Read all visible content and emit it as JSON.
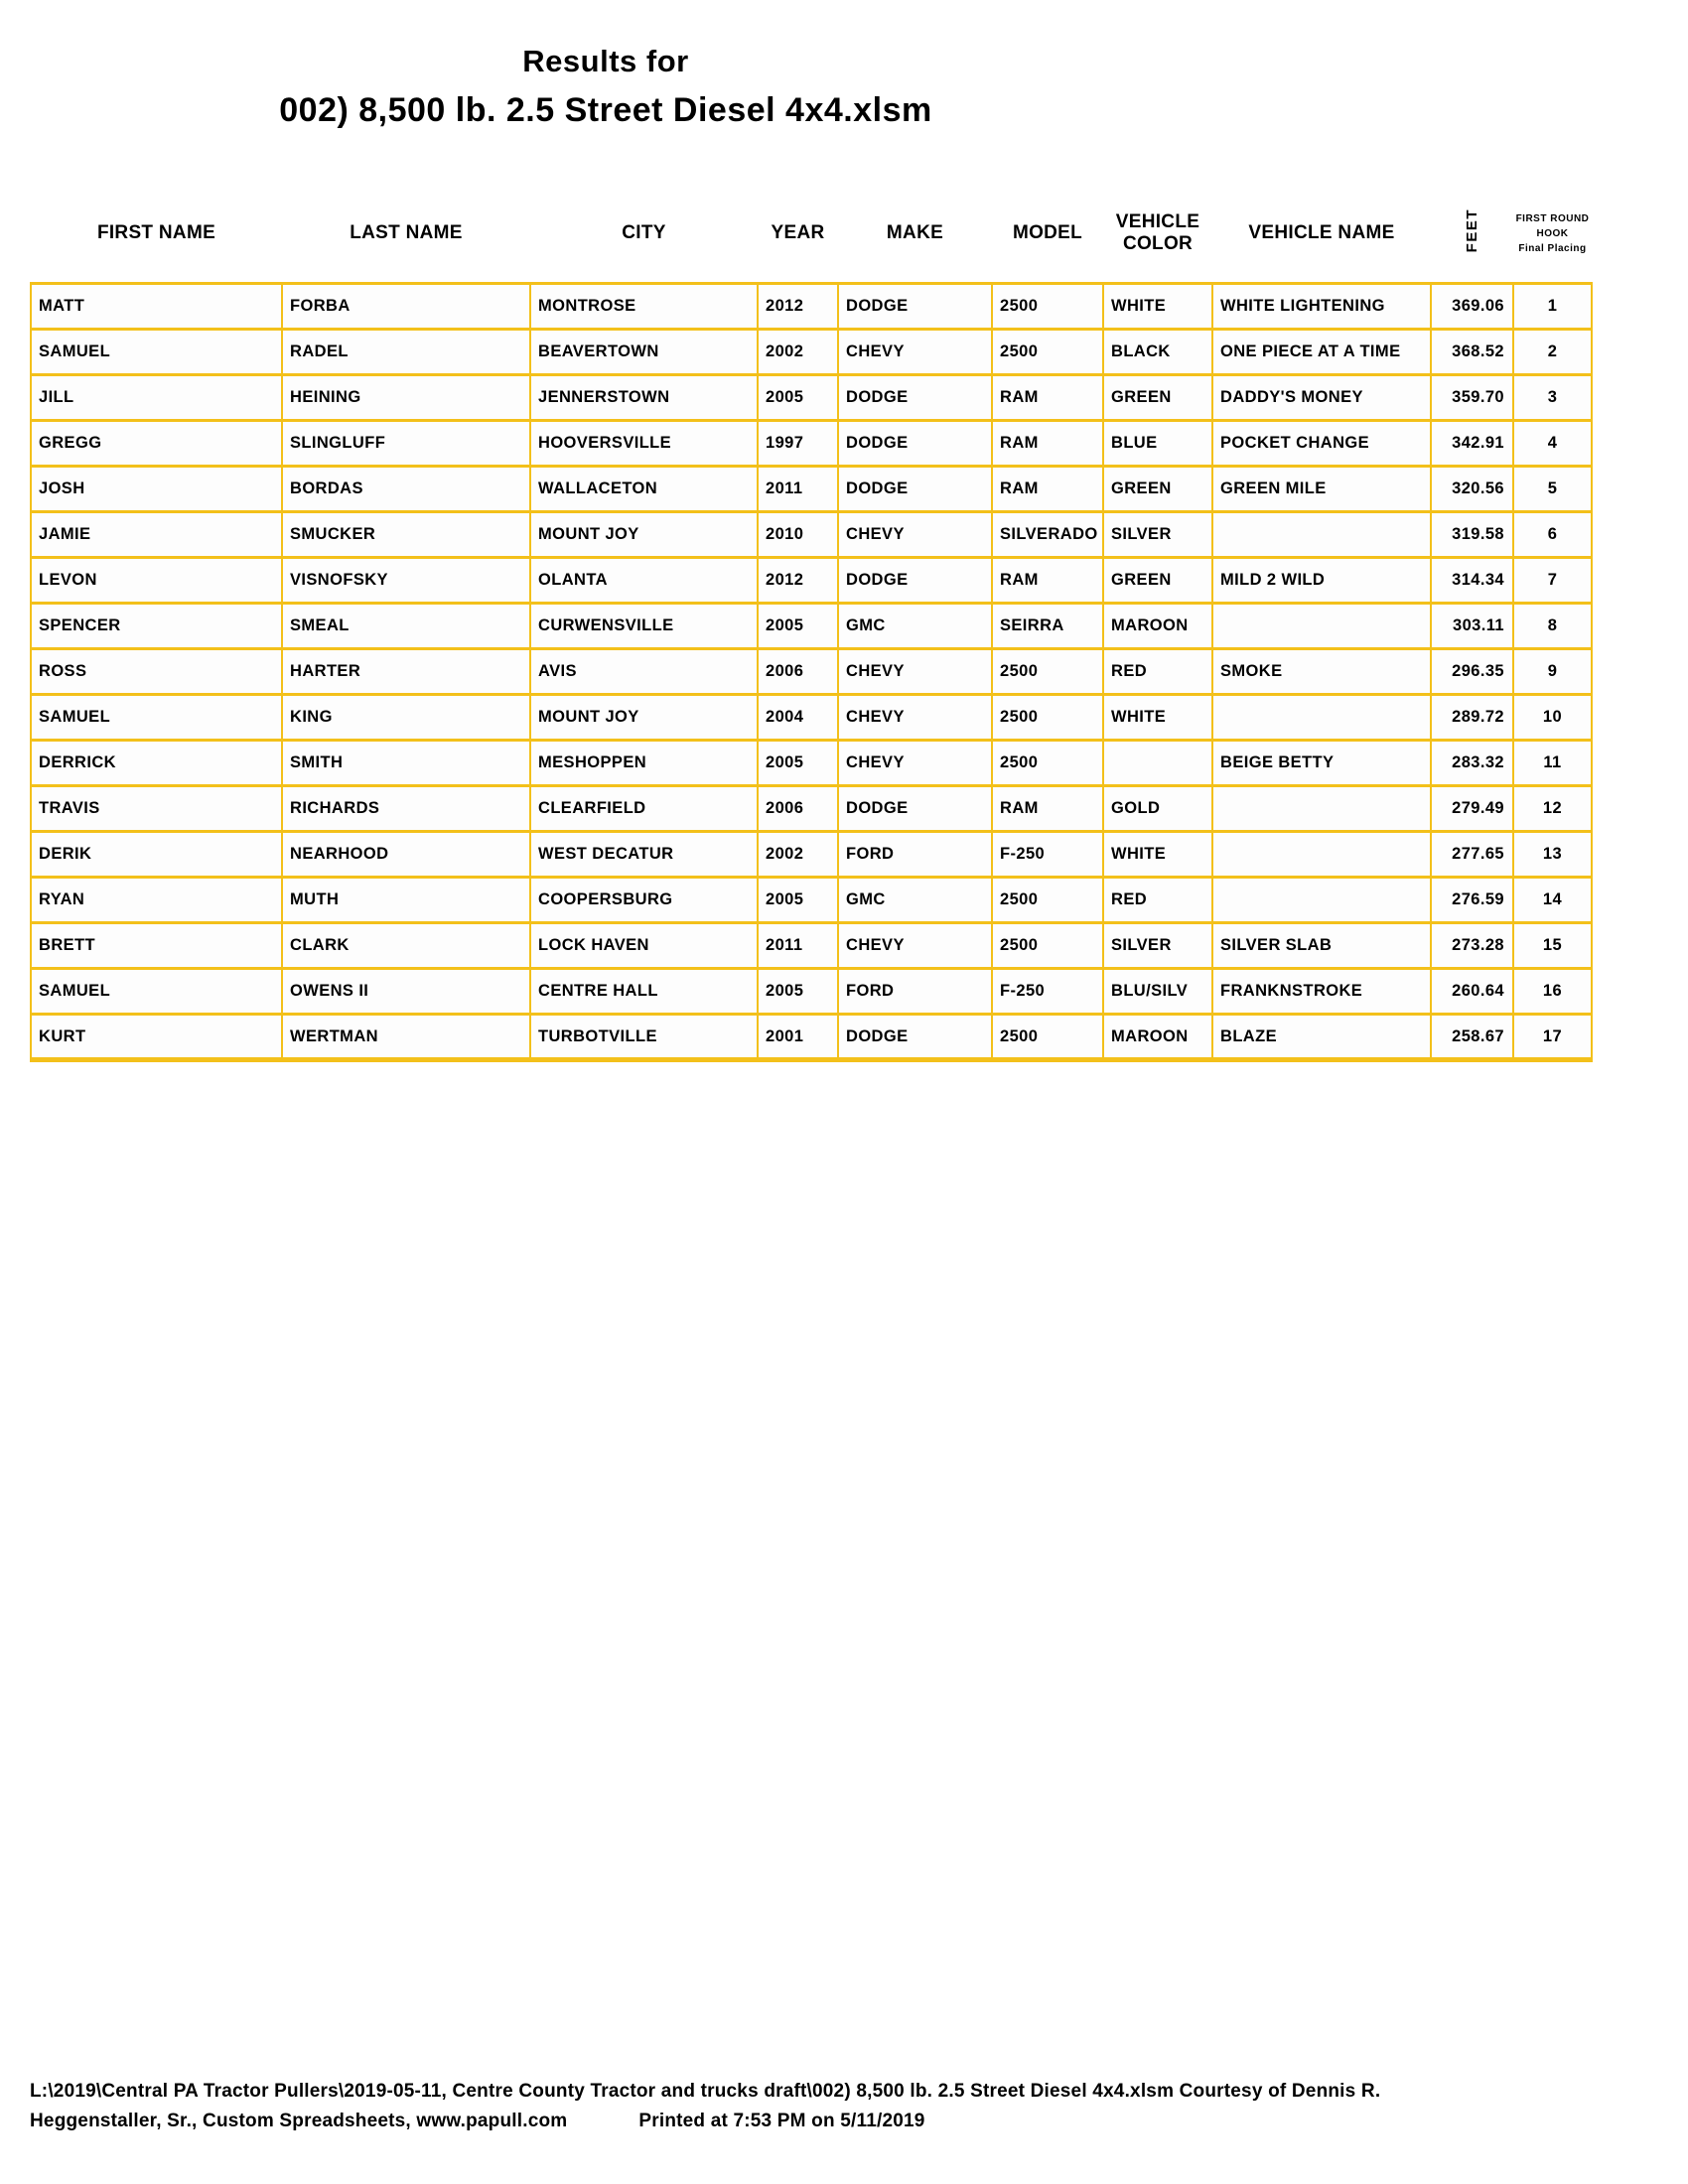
{
  "title": {
    "line1": "Results for",
    "line2": "002) 8,500 lb. 2.5 Street Diesel 4x4.xlsm"
  },
  "table": {
    "headers": [
      "FIRST NAME",
      "LAST NAME",
      "CITY",
      "YEAR",
      "MAKE",
      "MODEL",
      "VEHICLE COLOR",
      "VEHICLE NAME",
      "FEET"
    ],
    "placing_header": {
      "line1": "FIRST ROUND",
      "line2": "HOOK",
      "line3": "Final Placing"
    },
    "column_keys": [
      "first-name",
      "last-name",
      "city",
      "year",
      "make",
      "model",
      "vehicle-color",
      "vehicle-name",
      "feet",
      "placing"
    ],
    "rows": [
      [
        "MATT",
        "FORBA",
        "MONTROSE",
        "2012",
        "DODGE",
        "2500",
        "WHITE",
        "WHITE LIGHTENING",
        "369.06",
        "1"
      ],
      [
        "SAMUEL",
        "RADEL",
        "BEAVERTOWN",
        "2002",
        "CHEVY",
        "2500",
        "BLACK",
        "ONE PIECE AT A TIME",
        "368.52",
        "2"
      ],
      [
        "JILL",
        "HEINING",
        "JENNERSTOWN",
        "2005",
        "DODGE",
        "RAM",
        "GREEN",
        "DADDY'S MONEY",
        "359.70",
        "3"
      ],
      [
        "GREGG",
        "SLINGLUFF",
        "HOOVERSVILLE",
        "1997",
        "DODGE",
        "RAM",
        "BLUE",
        "POCKET CHANGE",
        "342.91",
        "4"
      ],
      [
        "JOSH",
        "BORDAS",
        "WALLACETON",
        "2011",
        "DODGE",
        "RAM",
        "GREEN",
        "GREEN MILE",
        "320.56",
        "5"
      ],
      [
        "JAMIE",
        "SMUCKER",
        "MOUNT JOY",
        "2010",
        "CHEVY",
        "SILVERADO",
        "SILVER",
        "",
        "319.58",
        "6"
      ],
      [
        "LEVON",
        "VISNOFSKY",
        "OLANTA",
        "2012",
        "DODGE",
        "RAM",
        "GREEN",
        "MILD 2 WILD",
        "314.34",
        "7"
      ],
      [
        "SPENCER",
        "SMEAL",
        "CURWENSVILLE",
        "2005",
        "GMC",
        "SEIRRA",
        "MAROON",
        "",
        "303.11",
        "8"
      ],
      [
        "ROSS",
        "HARTER",
        "AVIS",
        "2006",
        "CHEVY",
        "2500",
        "RED",
        "SMOKE",
        "296.35",
        "9"
      ],
      [
        "SAMUEL",
        "KING",
        "MOUNT JOY",
        "2004",
        "CHEVY",
        "2500",
        "WHITE",
        "",
        "289.72",
        "10"
      ],
      [
        "DERRICK",
        "SMITH",
        "MESHOPPEN",
        "2005",
        "CHEVY",
        "2500",
        "",
        "BEIGE BETTY",
        "283.32",
        "11"
      ],
      [
        "TRAVIS",
        "RICHARDS",
        "CLEARFIELD",
        "2006",
        "DODGE",
        "RAM",
        "GOLD",
        "",
        "279.49",
        "12"
      ],
      [
        "DERIK",
        "NEARHOOD",
        "WEST DECATUR",
        "2002",
        "FORD",
        "F-250",
        "WHITE",
        "",
        "277.65",
        "13"
      ],
      [
        "RYAN",
        "MUTH",
        "COOPERSBURG",
        "2005",
        "GMC",
        "2500",
        "RED",
        "",
        "276.59",
        "14"
      ],
      [
        "BRETT",
        "CLARK",
        "LOCK HAVEN",
        "2011",
        "CHEVY",
        "2500",
        "SILVER",
        "SILVER SLAB",
        "273.28",
        "15"
      ],
      [
        "SAMUEL",
        "OWENS II",
        "CENTRE HALL",
        "2005",
        "FORD",
        "F-250",
        "BLU/SILV",
        "FRANKNSTROKE",
        "260.64",
        "16"
      ],
      [
        "KURT",
        "WERTMAN",
        "TURBOTVILLE",
        "2001",
        "DODGE",
        "2500",
        "MAROON",
        "BLAZE",
        "258.67",
        "17"
      ]
    ]
  },
  "footer": {
    "line1": "L:\\2019\\Central PA Tractor Pullers\\2019-05-11, Centre County Tractor and trucks draft\\002) 8,500 lb. 2.5 Street Diesel 4x4.xlsm  Courtesy of Dennis R.",
    "line2": "Heggenstaller, Sr., Custom Spreadsheets, www.papull.com",
    "printed": "Printed at 7:53 PM on 5/11/2019"
  },
  "colors": {
    "grid_border": "#F3C01A",
    "text": "#000000",
    "background": "#FFFFFF"
  }
}
